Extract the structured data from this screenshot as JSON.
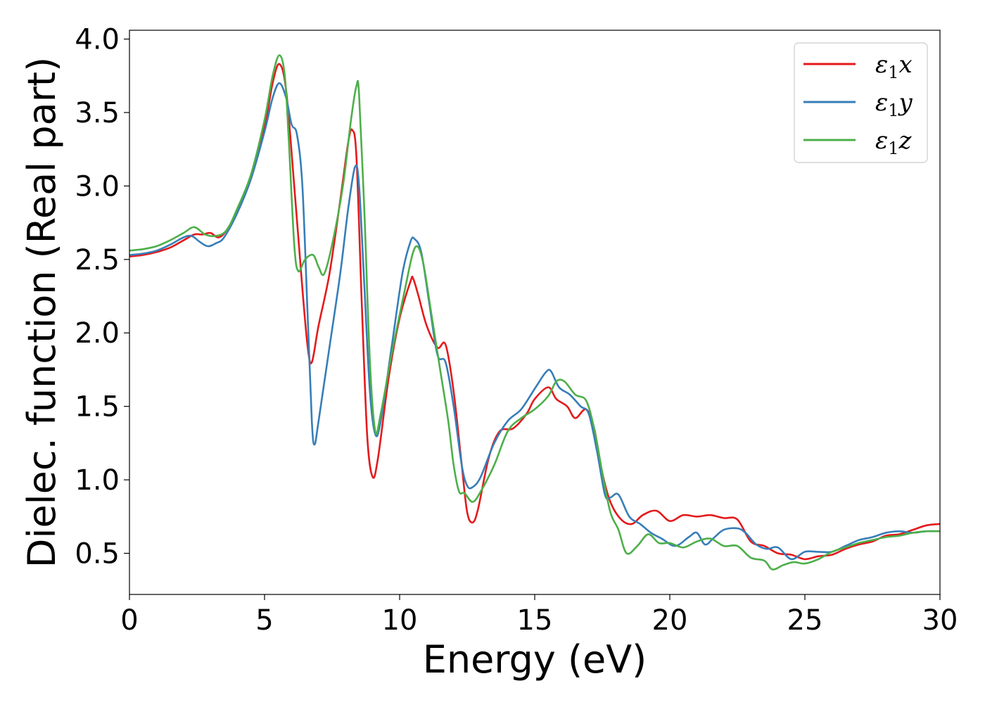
{
  "chart_data": {
    "type": "line",
    "title": "",
    "xlabel": "Energy (eV)",
    "ylabel": "Dielec. function (Real part)",
    "xlim": [
      0,
      30
    ],
    "ylim": [
      0.22,
      4.06
    ],
    "xticks": [
      0,
      5,
      10,
      15,
      20,
      25,
      30
    ],
    "xtick_labels": [
      "0",
      "5",
      "10",
      "15",
      "20",
      "25",
      "30"
    ],
    "yticks": [
      0.5,
      1.0,
      1.5,
      2.0,
      2.5,
      3.0,
      3.5,
      4.0
    ],
    "ytick_labels": [
      "0.5",
      "1.0",
      "1.5",
      "2.0",
      "2.5",
      "3.0",
      "3.5",
      "4.0"
    ],
    "grid": false,
    "legend_position": "top-right",
    "series": [
      {
        "name": "ε1x",
        "legend_main": "ε",
        "legend_sub": "1",
        "legend_var": "x",
        "color": "#e41a1c",
        "points": [
          [
            0,
            2.52
          ],
          [
            0.5,
            2.53
          ],
          [
            1,
            2.55
          ],
          [
            1.5,
            2.58
          ],
          [
            2,
            2.63
          ],
          [
            2.4,
            2.67
          ],
          [
            2.7,
            2.67
          ],
          [
            3,
            2.68
          ],
          [
            3.3,
            2.65
          ],
          [
            3.6,
            2.7
          ],
          [
            4,
            2.83
          ],
          [
            4.5,
            3.05
          ],
          [
            5,
            3.4
          ],
          [
            5.3,
            3.7
          ],
          [
            5.55,
            3.83
          ],
          [
            5.8,
            3.65
          ],
          [
            6.1,
            3.0
          ],
          [
            6.4,
            2.3
          ],
          [
            6.6,
            1.9
          ],
          [
            6.75,
            1.8
          ],
          [
            7,
            2.05
          ],
          [
            7.4,
            2.4
          ],
          [
            7.8,
            2.9
          ],
          [
            8.1,
            3.3
          ],
          [
            8.25,
            3.38
          ],
          [
            8.4,
            3.2
          ],
          [
            8.6,
            2.2
          ],
          [
            8.8,
            1.3
          ],
          [
            9.0,
            1.02
          ],
          [
            9.2,
            1.15
          ],
          [
            9.6,
            1.7
          ],
          [
            10.0,
            2.1
          ],
          [
            10.4,
            2.35
          ],
          [
            10.5,
            2.37
          ],
          [
            10.7,
            2.25
          ],
          [
            11.0,
            2.05
          ],
          [
            11.4,
            1.9
          ],
          [
            11.7,
            1.92
          ],
          [
            12.0,
            1.6
          ],
          [
            12.3,
            1.1
          ],
          [
            12.5,
            0.78
          ],
          [
            12.7,
            0.71
          ],
          [
            12.9,
            0.8
          ],
          [
            13.3,
            1.15
          ],
          [
            13.7,
            1.33
          ],
          [
            14.2,
            1.35
          ],
          [
            14.7,
            1.45
          ],
          [
            15.0,
            1.55
          ],
          [
            15.5,
            1.63
          ],
          [
            15.8,
            1.55
          ],
          [
            16.2,
            1.5
          ],
          [
            16.5,
            1.42
          ],
          [
            16.9,
            1.48
          ],
          [
            17.2,
            1.35
          ],
          [
            17.5,
            1.05
          ],
          [
            17.8,
            0.85
          ],
          [
            18.2,
            0.73
          ],
          [
            18.6,
            0.7
          ],
          [
            19.0,
            0.76
          ],
          [
            19.5,
            0.79
          ],
          [
            20.0,
            0.72
          ],
          [
            20.5,
            0.76
          ],
          [
            21.0,
            0.75
          ],
          [
            21.5,
            0.76
          ],
          [
            22.0,
            0.74
          ],
          [
            22.5,
            0.73
          ],
          [
            23.0,
            0.58
          ],
          [
            23.5,
            0.55
          ],
          [
            24.0,
            0.5
          ],
          [
            24.5,
            0.49
          ],
          [
            25.0,
            0.46
          ],
          [
            25.5,
            0.48
          ],
          [
            26.0,
            0.49
          ],
          [
            26.5,
            0.53
          ],
          [
            27.0,
            0.56
          ],
          [
            27.5,
            0.58
          ],
          [
            28.0,
            0.62
          ],
          [
            28.5,
            0.63
          ],
          [
            29.0,
            0.66
          ],
          [
            29.5,
            0.69
          ],
          [
            30.0,
            0.7
          ]
        ]
      },
      {
        "name": "ε1y",
        "legend_main": "ε",
        "legend_sub": "1",
        "legend_var": "y",
        "color": "#377eb8",
        "points": [
          [
            0,
            2.53
          ],
          [
            0.5,
            2.54
          ],
          [
            1,
            2.56
          ],
          [
            1.5,
            2.6
          ],
          [
            2,
            2.65
          ],
          [
            2.3,
            2.66
          ],
          [
            2.6,
            2.62
          ],
          [
            2.9,
            2.59
          ],
          [
            3.2,
            2.61
          ],
          [
            3.5,
            2.65
          ],
          [
            4,
            2.82
          ],
          [
            4.5,
            3.05
          ],
          [
            5,
            3.37
          ],
          [
            5.3,
            3.6
          ],
          [
            5.55,
            3.7
          ],
          [
            5.8,
            3.6
          ],
          [
            6.0,
            3.42
          ],
          [
            6.2,
            3.35
          ],
          [
            6.4,
            3.0
          ],
          [
            6.6,
            2.1
          ],
          [
            6.75,
            1.4
          ],
          [
            6.85,
            1.24
          ],
          [
            7.0,
            1.4
          ],
          [
            7.4,
            1.9
          ],
          [
            7.8,
            2.4
          ],
          [
            8.1,
            2.85
          ],
          [
            8.35,
            3.13
          ],
          [
            8.5,
            3.0
          ],
          [
            8.7,
            2.3
          ],
          [
            8.9,
            1.6
          ],
          [
            9.1,
            1.31
          ],
          [
            9.3,
            1.4
          ],
          [
            9.7,
            1.9
          ],
          [
            10.1,
            2.4
          ],
          [
            10.4,
            2.62
          ],
          [
            10.55,
            2.64
          ],
          [
            10.8,
            2.55
          ],
          [
            11.1,
            2.2
          ],
          [
            11.4,
            1.85
          ],
          [
            11.7,
            1.8
          ],
          [
            12.0,
            1.5
          ],
          [
            12.3,
            1.1
          ],
          [
            12.5,
            0.96
          ],
          [
            12.7,
            0.95
          ],
          [
            13.0,
            1.02
          ],
          [
            13.5,
            1.25
          ],
          [
            14.0,
            1.4
          ],
          [
            14.5,
            1.48
          ],
          [
            15.0,
            1.62
          ],
          [
            15.4,
            1.73
          ],
          [
            15.6,
            1.74
          ],
          [
            15.9,
            1.63
          ],
          [
            16.3,
            1.58
          ],
          [
            16.7,
            1.5
          ],
          [
            17.0,
            1.45
          ],
          [
            17.3,
            1.2
          ],
          [
            17.6,
            0.9
          ],
          [
            17.8,
            0.88
          ],
          [
            18.1,
            0.9
          ],
          [
            18.5,
            0.75
          ],
          [
            18.9,
            0.7
          ],
          [
            19.3,
            0.64
          ],
          [
            19.7,
            0.6
          ],
          [
            20.2,
            0.55
          ],
          [
            20.7,
            0.61
          ],
          [
            21.0,
            0.64
          ],
          [
            21.3,
            0.56
          ],
          [
            21.6,
            0.6
          ],
          [
            22.0,
            0.66
          ],
          [
            22.5,
            0.67
          ],
          [
            22.8,
            0.64
          ],
          [
            23.2,
            0.56
          ],
          [
            23.6,
            0.53
          ],
          [
            24.0,
            0.54
          ],
          [
            24.5,
            0.46
          ],
          [
            25.0,
            0.51
          ],
          [
            25.5,
            0.51
          ],
          [
            26.0,
            0.51
          ],
          [
            26.5,
            0.55
          ],
          [
            27.0,
            0.59
          ],
          [
            27.5,
            0.61
          ],
          [
            28.0,
            0.64
          ],
          [
            28.5,
            0.65
          ],
          [
            29.0,
            0.64
          ],
          [
            29.5,
            0.65
          ],
          [
            30.0,
            0.65
          ]
        ]
      },
      {
        "name": "ε1z",
        "legend_main": "ε",
        "legend_sub": "1",
        "legend_var": "z",
        "color": "#4daf4a",
        "points": [
          [
            0,
            2.56
          ],
          [
            0.5,
            2.57
          ],
          [
            1,
            2.59
          ],
          [
            1.5,
            2.63
          ],
          [
            2,
            2.68
          ],
          [
            2.4,
            2.72
          ],
          [
            2.8,
            2.67
          ],
          [
            3.2,
            2.66
          ],
          [
            3.6,
            2.7
          ],
          [
            4,
            2.85
          ],
          [
            4.5,
            3.08
          ],
          [
            5,
            3.45
          ],
          [
            5.3,
            3.75
          ],
          [
            5.55,
            3.89
          ],
          [
            5.75,
            3.75
          ],
          [
            5.9,
            3.3
          ],
          [
            6.1,
            2.6
          ],
          [
            6.25,
            2.42
          ],
          [
            6.5,
            2.5
          ],
          [
            6.8,
            2.53
          ],
          [
            7.0,
            2.45
          ],
          [
            7.2,
            2.4
          ],
          [
            7.5,
            2.6
          ],
          [
            7.9,
            3.0
          ],
          [
            8.2,
            3.45
          ],
          [
            8.4,
            3.68
          ],
          [
            8.5,
            3.62
          ],
          [
            8.7,
            2.8
          ],
          [
            8.9,
            1.8
          ],
          [
            9.1,
            1.33
          ],
          [
            9.3,
            1.45
          ],
          [
            9.7,
            1.85
          ],
          [
            10.2,
            2.3
          ],
          [
            10.5,
            2.55
          ],
          [
            10.7,
            2.58
          ],
          [
            10.9,
            2.45
          ],
          [
            11.2,
            2.1
          ],
          [
            11.5,
            1.75
          ],
          [
            11.8,
            1.4
          ],
          [
            12.0,
            1.1
          ],
          [
            12.2,
            0.92
          ],
          [
            12.4,
            0.91
          ],
          [
            12.7,
            0.85
          ],
          [
            13.0,
            0.92
          ],
          [
            13.5,
            1.1
          ],
          [
            14.0,
            1.33
          ],
          [
            14.5,
            1.42
          ],
          [
            15.0,
            1.48
          ],
          [
            15.5,
            1.57
          ],
          [
            15.8,
            1.67
          ],
          [
            16.1,
            1.67
          ],
          [
            16.5,
            1.58
          ],
          [
            16.9,
            1.54
          ],
          [
            17.2,
            1.35
          ],
          [
            17.5,
            1.05
          ],
          [
            17.8,
            0.78
          ],
          [
            18.1,
            0.66
          ],
          [
            18.4,
            0.5
          ],
          [
            18.8,
            0.55
          ],
          [
            19.2,
            0.63
          ],
          [
            19.6,
            0.57
          ],
          [
            20.0,
            0.57
          ],
          [
            20.5,
            0.54
          ],
          [
            21.0,
            0.58
          ],
          [
            21.5,
            0.6
          ],
          [
            22.0,
            0.55
          ],
          [
            22.5,
            0.55
          ],
          [
            23.0,
            0.47
          ],
          [
            23.5,
            0.45
          ],
          [
            23.8,
            0.39
          ],
          [
            24.2,
            0.42
          ],
          [
            24.6,
            0.44
          ],
          [
            25.0,
            0.43
          ],
          [
            25.5,
            0.46
          ],
          [
            26.0,
            0.51
          ],
          [
            26.5,
            0.54
          ],
          [
            27.0,
            0.57
          ],
          [
            27.5,
            0.59
          ],
          [
            28.0,
            0.61
          ],
          [
            28.5,
            0.62
          ],
          [
            29.0,
            0.64
          ],
          [
            29.5,
            0.65
          ],
          [
            30.0,
            0.65
          ]
        ]
      }
    ]
  }
}
